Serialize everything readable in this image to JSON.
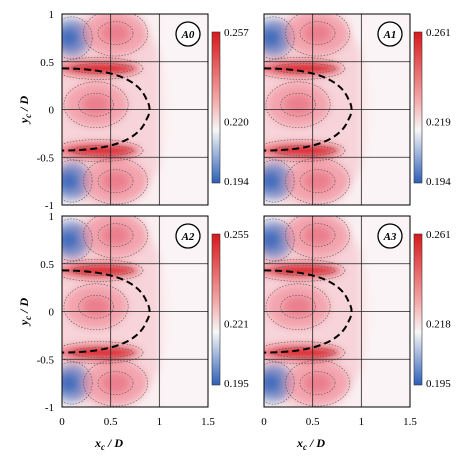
{
  "chart_data": [
    {
      "type": "heatmap",
      "panel": "A0",
      "xlabel": "",
      "ylabel": "y_c / D",
      "xlim": [
        0,
        1.5
      ],
      "ylim": [
        -1,
        1
      ],
      "x_ticks": [
        "0",
        "0.5",
        "1",
        "1.5"
      ],
      "x_ticks_shown": false,
      "y_ticks": [
        "1",
        "0.5",
        "0",
        "-0.5",
        "-1"
      ],
      "y_ticks_shown": true,
      "grid": true,
      "colorbar": {
        "min": 0.194,
        "max": 0.257,
        "labels": [
          "0.257",
          "0.220",
          "0.194"
        ]
      },
      "features": {
        "high_bands": [
          {
            "x": [
              0.0,
              0.75
            ],
            "y": 0.43
          },
          {
            "x": [
              0.0,
              0.75
            ],
            "y": -0.43
          }
        ],
        "high_lobes": [
          {
            "x": 0.55,
            "y": 0.8
          },
          {
            "x": 0.35,
            "y": 0.05
          },
          {
            "x": 0.55,
            "y": -0.75
          }
        ],
        "low_regions": [
          {
            "x": 0.1,
            "y": 0.75
          },
          {
            "x": 0.1,
            "y": -0.75
          }
        ]
      }
    },
    {
      "type": "heatmap",
      "panel": "A1",
      "xlabel": "",
      "ylabel": "",
      "xlim": [
        0,
        1.5
      ],
      "ylim": [
        -1,
        1
      ],
      "x_ticks": [
        "0",
        "0.5",
        "1",
        "1.5"
      ],
      "x_ticks_shown": false,
      "y_ticks": [
        "1",
        "0.5",
        "0",
        "-0.5",
        "-1"
      ],
      "y_ticks_shown": false,
      "grid": true,
      "colorbar": {
        "min": 0.194,
        "max": 0.261,
        "labels": [
          "0.261",
          "0.219",
          "0.194"
        ]
      },
      "features": {
        "high_bands": [
          {
            "x": [
              0.0,
              0.75
            ],
            "y": 0.43
          },
          {
            "x": [
              0.0,
              0.75
            ],
            "y": -0.43
          }
        ],
        "high_lobes": [
          {
            "x": 0.55,
            "y": 0.8
          },
          {
            "x": 0.35,
            "y": 0.05
          },
          {
            "x": 0.55,
            "y": -0.75
          }
        ],
        "low_regions": [
          {
            "x": 0.1,
            "y": 0.75
          },
          {
            "x": 0.1,
            "y": -0.75
          }
        ]
      }
    },
    {
      "type": "heatmap",
      "panel": "A2",
      "xlabel": "x_c / D",
      "ylabel": "y_c / D",
      "xlim": [
        0,
        1.5
      ],
      "ylim": [
        -1,
        1
      ],
      "x_ticks": [
        "0",
        "0.5",
        "1",
        "1.5"
      ],
      "x_ticks_shown": true,
      "y_ticks": [
        "1",
        "0.5",
        "0",
        "-0.5",
        "-1"
      ],
      "y_ticks_shown": true,
      "grid": true,
      "colorbar": {
        "min": 0.195,
        "max": 0.255,
        "labels": [
          "0.255",
          "0.221",
          "0.195"
        ]
      },
      "features": {
        "high_bands": [
          {
            "x": [
              0.0,
              0.75
            ],
            "y": 0.43
          },
          {
            "x": [
              0.0,
              0.75
            ],
            "y": -0.43
          }
        ],
        "high_lobes": [
          {
            "x": 0.55,
            "y": 0.8
          },
          {
            "x": 0.35,
            "y": 0.05
          },
          {
            "x": 0.55,
            "y": -0.75
          }
        ],
        "low_regions": [
          {
            "x": 0.1,
            "y": 0.75
          },
          {
            "x": 0.1,
            "y": -0.75
          }
        ]
      }
    },
    {
      "type": "heatmap",
      "panel": "A3",
      "xlabel": "x_c / D",
      "ylabel": "",
      "xlim": [
        0,
        1.5
      ],
      "ylim": [
        -1,
        1
      ],
      "x_ticks": [
        "0",
        "0.5",
        "1",
        "1.5"
      ],
      "x_ticks_shown": true,
      "y_ticks": [
        "1",
        "0.5",
        "0",
        "-0.5",
        "-1"
      ],
      "y_ticks_shown": false,
      "grid": true,
      "colorbar": {
        "min": 0.195,
        "max": 0.261,
        "labels": [
          "0.261",
          "0.218",
          "0.195"
        ]
      },
      "features": {
        "high_bands": [
          {
            "x": [
              0.0,
              0.75
            ],
            "y": 0.43
          },
          {
            "x": [
              0.0,
              0.75
            ],
            "y": -0.43
          }
        ],
        "high_lobes": [
          {
            "x": 0.55,
            "y": 0.8
          },
          {
            "x": 0.35,
            "y": 0.05
          },
          {
            "x": 0.55,
            "y": -0.75
          }
        ],
        "low_regions": [
          {
            "x": 0.1,
            "y": 0.75
          },
          {
            "x": 0.1,
            "y": -0.75
          }
        ]
      }
    }
  ],
  "colors": {
    "high": "#d7191c",
    "mid": "#f7f7f7",
    "low": "#2c5fb8"
  },
  "x_axis_symbol": "x",
  "x_axis_sub": "c",
  "x_axis_rest": " / D",
  "y_axis_symbol": "y",
  "y_axis_sub": "c",
  "y_axis_rest": " / D"
}
